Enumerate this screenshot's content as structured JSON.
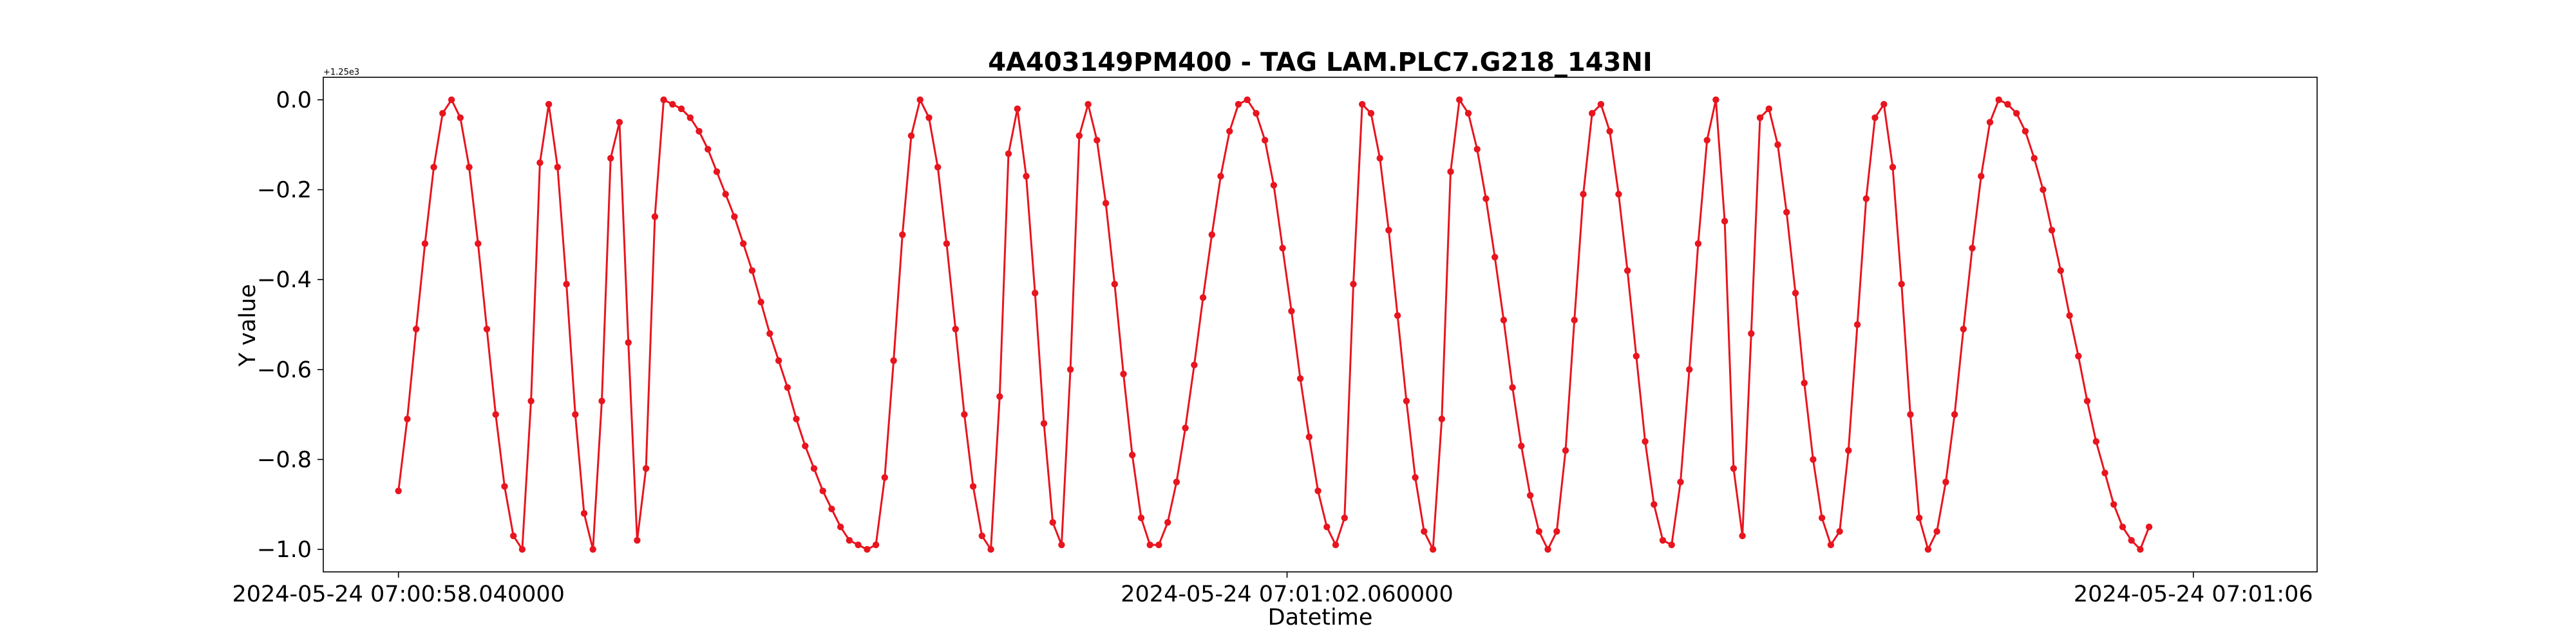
{
  "chart_data": {
    "type": "line",
    "title": "4A403149PM400 - TAG LAM.PLC7.G218_143NI",
    "xlabel": "Datetime",
    "ylabel": "Y value",
    "y_offset_label": "+1.25e3",
    "ylim": [
      -1.05,
      0.05
    ],
    "yticks": [
      0.0,
      -0.2,
      -0.4,
      -0.6,
      -0.8,
      -1.0
    ],
    "ytick_labels": [
      "0.0",
      "−0.2",
      "−0.4",
      "−0.6",
      "−0.8",
      "−1.0"
    ],
    "xlim": [
      -0.34,
      8.68
    ],
    "xticks": [
      0.0,
      4.02,
      8.12
    ],
    "xtick_labels": [
      "2024-05-24 07:00:58.040000",
      "2024-05-24 07:01:02.060000",
      "2024-05-24 07:01:06"
    ],
    "grid": false,
    "series": [
      {
        "color": "#e8141e",
        "marker": "circle",
        "points": [
          [
            0.0,
            -0.87
          ],
          [
            0.04,
            -0.71
          ],
          [
            0.08,
            -0.51
          ],
          [
            0.12,
            -0.32
          ],
          [
            0.16,
            -0.15
          ],
          [
            0.2,
            -0.03
          ],
          [
            0.24,
            0.0
          ],
          [
            0.28,
            -0.04
          ],
          [
            0.32,
            -0.15
          ],
          [
            0.36,
            -0.32
          ],
          [
            0.4,
            -0.51
          ],
          [
            0.44,
            -0.7
          ],
          [
            0.48,
            -0.86
          ],
          [
            0.52,
            -0.97
          ],
          [
            0.56,
            -1.0
          ],
          [
            0.6,
            -0.67
          ],
          [
            0.64,
            -0.14
          ],
          [
            0.68,
            -0.01
          ],
          [
            0.72,
            -0.15
          ],
          [
            0.76,
            -0.41
          ],
          [
            0.8,
            -0.7
          ],
          [
            0.84,
            -0.92
          ],
          [
            0.88,
            -1.0
          ],
          [
            0.92,
            -0.67
          ],
          [
            0.96,
            -0.13
          ],
          [
            1.0,
            -0.05
          ],
          [
            1.04,
            -0.54
          ],
          [
            1.08,
            -0.98
          ],
          [
            1.12,
            -0.82
          ],
          [
            1.16,
            -0.26
          ],
          [
            1.2,
            0.0
          ],
          [
            1.24,
            -0.01
          ],
          [
            1.28,
            -0.02
          ],
          [
            1.32,
            -0.04
          ],
          [
            1.36,
            -0.07
          ],
          [
            1.4,
            -0.11
          ],
          [
            1.44,
            -0.16
          ],
          [
            1.48,
            -0.21
          ],
          [
            1.52,
            -0.26
          ],
          [
            1.56,
            -0.32
          ],
          [
            1.6,
            -0.38
          ],
          [
            1.64,
            -0.45
          ],
          [
            1.68,
            -0.52
          ],
          [
            1.72,
            -0.58
          ],
          [
            1.76,
            -0.64
          ],
          [
            1.8,
            -0.71
          ],
          [
            1.84,
            -0.77
          ],
          [
            1.88,
            -0.82
          ],
          [
            1.92,
            -0.87
          ],
          [
            1.96,
            -0.91
          ],
          [
            2.0,
            -0.95
          ],
          [
            2.04,
            -0.98
          ],
          [
            2.08,
            -0.99
          ],
          [
            2.12,
            -1.0
          ],
          [
            2.16,
            -0.99
          ],
          [
            2.2,
            -0.84
          ],
          [
            2.24,
            -0.58
          ],
          [
            2.28,
            -0.3
          ],
          [
            2.32,
            -0.08
          ],
          [
            2.36,
            0.0
          ],
          [
            2.4,
            -0.04
          ],
          [
            2.44,
            -0.15
          ],
          [
            2.48,
            -0.32
          ],
          [
            2.52,
            -0.51
          ],
          [
            2.56,
            -0.7
          ],
          [
            2.6,
            -0.86
          ],
          [
            2.64,
            -0.97
          ],
          [
            2.68,
            -1.0
          ],
          [
            2.72,
            -0.66
          ],
          [
            2.76,
            -0.12
          ],
          [
            2.8,
            -0.02
          ],
          [
            2.84,
            -0.17
          ],
          [
            2.88,
            -0.43
          ],
          [
            2.92,
            -0.72
          ],
          [
            2.96,
            -0.94
          ],
          [
            3.0,
            -0.99
          ],
          [
            3.04,
            -0.6
          ],
          [
            3.08,
            -0.08
          ],
          [
            3.12,
            -0.01
          ],
          [
            3.16,
            -0.09
          ],
          [
            3.2,
            -0.23
          ],
          [
            3.24,
            -0.41
          ],
          [
            3.28,
            -0.61
          ],
          [
            3.32,
            -0.79
          ],
          [
            3.36,
            -0.93
          ],
          [
            3.4,
            -0.99
          ],
          [
            3.44,
            -0.99
          ],
          [
            3.48,
            -0.94
          ],
          [
            3.52,
            -0.85
          ],
          [
            3.56,
            -0.73
          ],
          [
            3.6,
            -0.59
          ],
          [
            3.64,
            -0.44
          ],
          [
            3.68,
            -0.3
          ],
          [
            3.72,
            -0.17
          ],
          [
            3.76,
            -0.07
          ],
          [
            3.8,
            -0.01
          ],
          [
            3.84,
            0.0
          ],
          [
            3.88,
            -0.03
          ],
          [
            3.92,
            -0.09
          ],
          [
            3.96,
            -0.19
          ],
          [
            4.0,
            -0.33
          ],
          [
            4.04,
            -0.47
          ],
          [
            4.08,
            -0.62
          ],
          [
            4.12,
            -0.75
          ],
          [
            4.16,
            -0.87
          ],
          [
            4.2,
            -0.95
          ],
          [
            4.24,
            -0.99
          ],
          [
            4.28,
            -0.93
          ],
          [
            4.32,
            -0.41
          ],
          [
            4.36,
            -0.01
          ],
          [
            4.4,
            -0.03
          ],
          [
            4.44,
            -0.13
          ],
          [
            4.48,
            -0.29
          ],
          [
            4.52,
            -0.48
          ],
          [
            4.56,
            -0.67
          ],
          [
            4.6,
            -0.84
          ],
          [
            4.64,
            -0.96
          ],
          [
            4.68,
            -1.0
          ],
          [
            4.72,
            -0.71
          ],
          [
            4.76,
            -0.16
          ],
          [
            4.8,
            0.0
          ],
          [
            4.84,
            -0.03
          ],
          [
            4.88,
            -0.11
          ],
          [
            4.92,
            -0.22
          ],
          [
            4.96,
            -0.35
          ],
          [
            5.0,
            -0.49
          ],
          [
            5.04,
            -0.64
          ],
          [
            5.08,
            -0.77
          ],
          [
            5.12,
            -0.88
          ],
          [
            5.16,
            -0.96
          ],
          [
            5.2,
            -1.0
          ],
          [
            5.24,
            -0.96
          ],
          [
            5.28,
            -0.78
          ],
          [
            5.32,
            -0.49
          ],
          [
            5.36,
            -0.21
          ],
          [
            5.4,
            -0.03
          ],
          [
            5.44,
            -0.01
          ],
          [
            5.48,
            -0.07
          ],
          [
            5.52,
            -0.21
          ],
          [
            5.56,
            -0.38
          ],
          [
            5.6,
            -0.57
          ],
          [
            5.64,
            -0.76
          ],
          [
            5.68,
            -0.9
          ],
          [
            5.72,
            -0.98
          ],
          [
            5.76,
            -0.99
          ],
          [
            5.8,
            -0.85
          ],
          [
            5.84,
            -0.6
          ],
          [
            5.88,
            -0.32
          ],
          [
            5.92,
            -0.09
          ],
          [
            5.96,
            0.0
          ],
          [
            6.0,
            -0.27
          ],
          [
            6.04,
            -0.82
          ],
          [
            6.08,
            -0.97
          ],
          [
            6.12,
            -0.52
          ],
          [
            6.16,
            -0.04
          ],
          [
            6.2,
            -0.02
          ],
          [
            6.24,
            -0.1
          ],
          [
            6.28,
            -0.25
          ],
          [
            6.32,
            -0.43
          ],
          [
            6.36,
            -0.63
          ],
          [
            6.4,
            -0.8
          ],
          [
            6.44,
            -0.93
          ],
          [
            6.48,
            -0.99
          ],
          [
            6.52,
            -0.96
          ],
          [
            6.56,
            -0.78
          ],
          [
            6.6,
            -0.5
          ],
          [
            6.64,
            -0.22
          ],
          [
            6.68,
            -0.04
          ],
          [
            6.72,
            -0.01
          ],
          [
            6.76,
            -0.15
          ],
          [
            6.8,
            -0.41
          ],
          [
            6.84,
            -0.7
          ],
          [
            6.88,
            -0.93
          ],
          [
            6.92,
            -1.0
          ],
          [
            6.96,
            -0.96
          ],
          [
            7.0,
            -0.85
          ],
          [
            7.04,
            -0.7
          ],
          [
            7.08,
            -0.51
          ],
          [
            7.12,
            -0.33
          ],
          [
            7.16,
            -0.17
          ],
          [
            7.2,
            -0.05
          ],
          [
            7.24,
            0.0
          ],
          [
            7.28,
            -0.01
          ],
          [
            7.32,
            -0.03
          ],
          [
            7.36,
            -0.07
          ],
          [
            7.4,
            -0.13
          ],
          [
            7.44,
            -0.2
          ],
          [
            7.48,
            -0.29
          ],
          [
            7.52,
            -0.38
          ],
          [
            7.56,
            -0.48
          ],
          [
            7.6,
            -0.57
          ],
          [
            7.64,
            -0.67
          ],
          [
            7.68,
            -0.76
          ],
          [
            7.72,
            -0.83
          ],
          [
            7.76,
            -0.9
          ],
          [
            7.8,
            -0.95
          ],
          [
            7.84,
            -0.98
          ],
          [
            7.88,
            -1.0
          ],
          [
            7.92,
            -0.95
          ]
        ]
      }
    ]
  }
}
